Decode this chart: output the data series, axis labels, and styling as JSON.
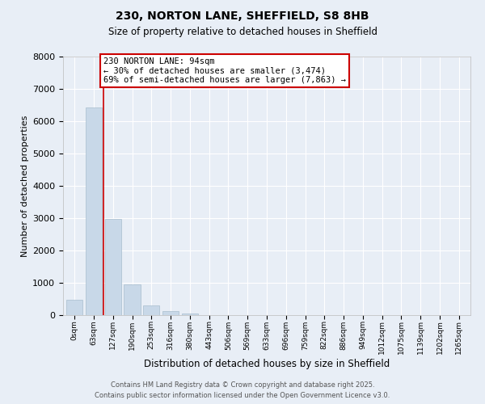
{
  "title_line1": "230, NORTON LANE, SHEFFIELD, S8 8HB",
  "title_line2": "Size of property relative to detached houses in Sheffield",
  "xlabel": "Distribution of detached houses by size in Sheffield",
  "ylabel": "Number of detached properties",
  "bar_color": "#c8d8e8",
  "bar_edge_color": "#a8bece",
  "background_color": "#e8eef6",
  "grid_color": "#ffffff",
  "vline_color": "#cc0000",
  "vline_x": 1.5,
  "annotation_box_color": "#cc0000",
  "annotation_text": "230 NORTON LANE: 94sqm\n← 30% of detached houses are smaller (3,474)\n69% of semi-detached houses are larger (7,863) →",
  "categories": [
    "0sqm",
    "63sqm",
    "127sqm",
    "190sqm",
    "253sqm",
    "316sqm",
    "380sqm",
    "443sqm",
    "506sqm",
    "569sqm",
    "633sqm",
    "696sqm",
    "759sqm",
    "822sqm",
    "886sqm",
    "949sqm",
    "1012sqm",
    "1075sqm",
    "1139sqm",
    "1202sqm",
    "1265sqm"
  ],
  "values": [
    480,
    6430,
    2980,
    960,
    300,
    130,
    50,
    10,
    5,
    0,
    0,
    0,
    0,
    0,
    0,
    0,
    0,
    0,
    0,
    0,
    0
  ],
  "ylim": [
    0,
    8000
  ],
  "yticks": [
    0,
    1000,
    2000,
    3000,
    4000,
    5000,
    6000,
    7000,
    8000
  ],
  "footer_line1": "Contains HM Land Registry data © Crown copyright and database right 2025.",
  "footer_line2": "Contains public sector information licensed under the Open Government Licence v3.0.",
  "fig_facecolor": "#e8eef6"
}
